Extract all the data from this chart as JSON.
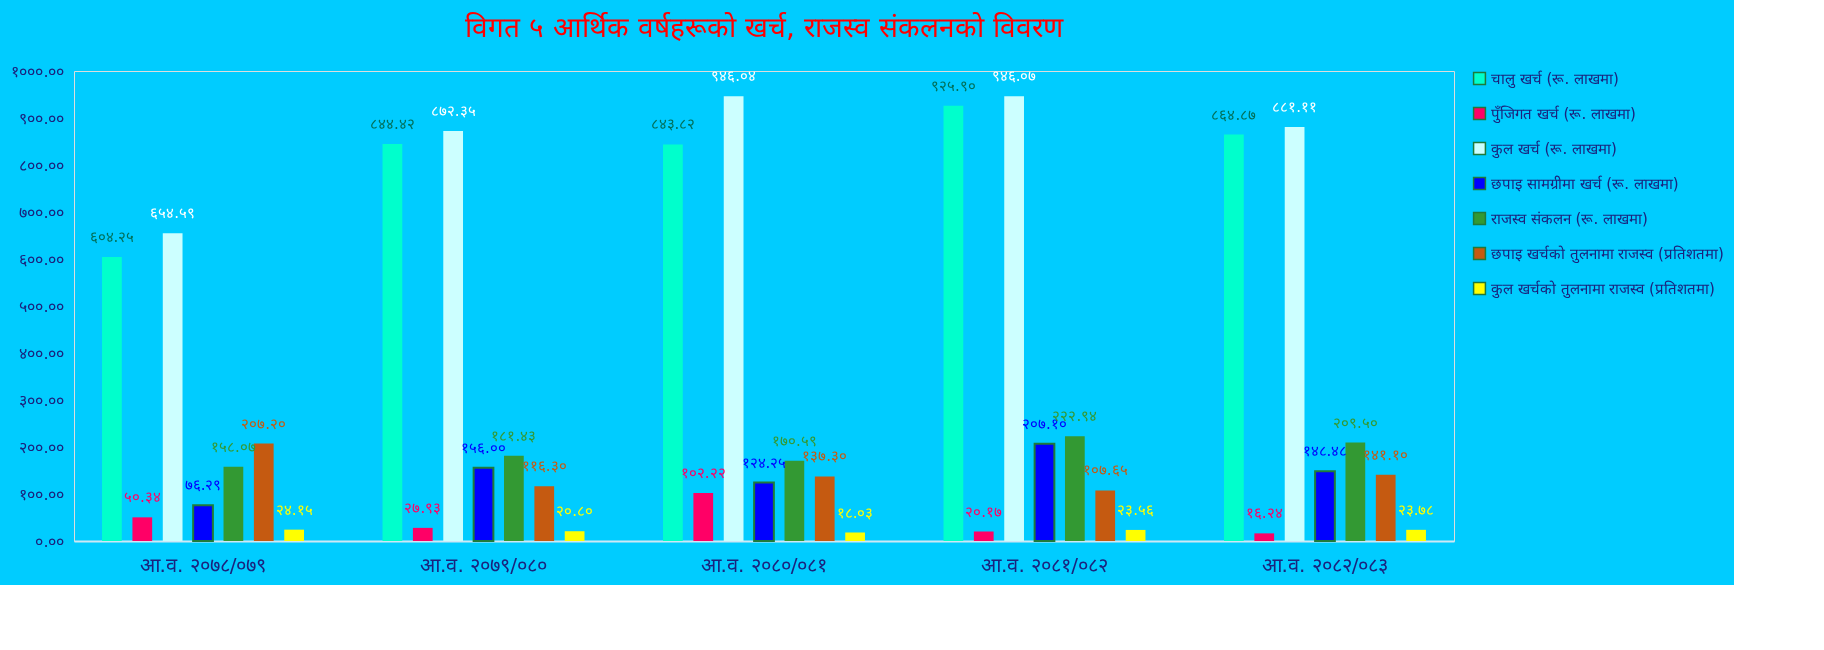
{
  "chart_data": {
    "type": "bar",
    "title": "विगत ५ आर्थिक वर्षहरूको खर्च, राजस्व संकलनको विवरण",
    "categories": [
      "आ.व. २०७८/०७९",
      "आ.व. २०७९/०८०",
      "आ.व. २०८०/०८१",
      "आ.व. २०८१/०८२",
      "आ.व. २०८२/०८३"
    ],
    "series": [
      {
        "name": "चालु खर्च (रू. लाखमा)",
        "color": "#00ffcc",
        "values": [
          604.25,
          844.42,
          843.82,
          925.9,
          864.87
        ],
        "value_labels": [
          "६०४.२५",
          "८४४.४२",
          "८४३.८२",
          "९२५.९०",
          "८६४.८७"
        ]
      },
      {
        "name": "पुँजिगत खर्च (रू. लाखमा)",
        "color": "#ff0066",
        "values": [
          50.34,
          27.93,
          102.22,
          20.17,
          16.24
        ],
        "value_labels": [
          "५०.३४",
          "२७.९३",
          "१०२.२२",
          "२०.१७",
          "१६.२४"
        ]
      },
      {
        "name": "कुल खर्च (रू. लाखमा)",
        "color": "#ccffff",
        "values": [
          654.59,
          872.35,
          946.04,
          946.07,
          881.11
        ],
        "value_labels": [
          "६५४.५९",
          "८७२.३५",
          "९४६.०४",
          "९४६.०७",
          "८८१.११"
        ]
      },
      {
        "name": "छपाइ सामग्रीमा खर्च (रू. लाखमा)",
        "color": "#0000ff",
        "values": [
          76.29,
          156.0,
          124.25,
          207.1,
          148.48
        ],
        "value_labels": [
          "७६.२९",
          "१५६.००",
          "१२४.२५",
          "२०७.१०",
          "१४८.४८"
        ]
      },
      {
        "name": "राजस्व संकलन (रू. लाखमा)",
        "color": "#339933",
        "values": [
          158.07,
          181.43,
          170.59,
          222.94,
          209.5
        ],
        "value_labels": [
          "१५८.०७",
          "१८१.४३",
          "१७०.५९",
          "२२२.९४",
          "२०९.५०"
        ]
      },
      {
        "name": "छपाइ खर्चको तुलनामा राजस्व (प्रतिशतमा)",
        "color": "#c55a11",
        "values": [
          207.2,
          116.3,
          137.3,
          107.65,
          141.1
        ],
        "value_labels": [
          "२०७.२०",
          "११६.३०",
          "१३७.३०",
          "१०७.६५",
          "१४१.१०"
        ]
      },
      {
        "name": "कुल खर्चको तुलनामा राजस्व (प्रतिशतमा)",
        "color": "#ffff00",
        "values": [
          24.15,
          20.8,
          18.03,
          23.56,
          23.78
        ],
        "value_labels": [
          "२४.१५",
          "२०.८०",
          "१८.०३",
          "२३.५६",
          "२३.७८"
        ]
      }
    ],
    "ylim": [
      0,
      1000
    ],
    "yticks": [
      {
        "value": 0,
        "label": "०.००"
      },
      {
        "value": 100,
        "label": "१००.००"
      },
      {
        "value": 200,
        "label": "२००.००"
      },
      {
        "value": 300,
        "label": "३००.००"
      },
      {
        "value": 400,
        "label": "४००.००"
      },
      {
        "value": 500,
        "label": "५००.००"
      },
      {
        "value": 600,
        "label": "६००.००"
      },
      {
        "value": 700,
        "label": "७००.००"
      },
      {
        "value": 800,
        "label": "८००.००"
      },
      {
        "value": 900,
        "label": "९००.००"
      },
      {
        "value": 1000,
        "label": "१०००.००"
      }
    ],
    "grid": false,
    "legend": "right"
  }
}
